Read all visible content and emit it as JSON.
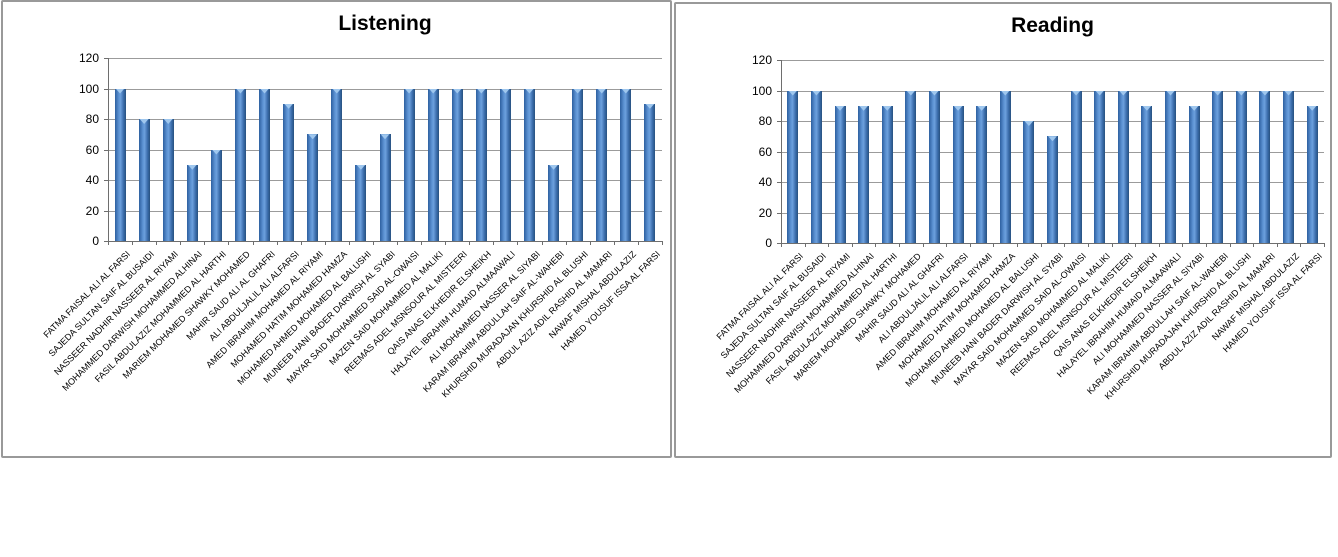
{
  "window": {
    "background": "#ffffff"
  },
  "colors": {
    "bar_dark": "#2d5f9f",
    "bar_mid": "#5c92d3",
    "bar_light": "#6ca0dd",
    "bar_shade": "#3a6cab",
    "bar_edge_dark": "#27517f",
    "bar_cap": "#9fc7ee",
    "gridline": "#9b9b9b",
    "axis": "#6e6e6e",
    "panel_border": "#999999",
    "text": "#000000"
  },
  "chart_data": [
    {
      "type": "bar",
      "title": "Listening",
      "ylim": [
        0,
        120
      ],
      "yticks": [
        0,
        20,
        40,
        60,
        80,
        100,
        120
      ],
      "grid": true,
      "legend": false,
      "categories": [
        "FATMA FAISAL ALI AL FARSI",
        "SAJEDA SULTAN SAIF AL BUSAIDI",
        "NASSEER NADHIR NASSEER AL RIYAMI",
        "MOHAMMED DARWISH MOHAMMED ALHINAI",
        "FASIL ABDULAZIZ MOHAMMED AL HARTHI",
        "MARIEM MOHAMED SHAWKY MOHAMED",
        "MAHIR SAUD ALI AL GHAFRI",
        "ALI ABDULJALIL ALI ALFARSI",
        "AMED IBRAHIM MOHAMED AL RIYAMI",
        "MOHAMED HATIM MOHAMED HAMZA",
        "MOHAMED AHMED MOHAMED AL BALUSHI",
        "MUNEEB HANI BADER DARWISH AL SYABI",
        "MAYAR SAID MOHAMMED SAID AL-OWAISI",
        "MAZEN SAID MOHAMMED AL MALIKI",
        "REEMAS ADEL MSNSOUR AL MISTEERI",
        "QAIS ANAS ELKHEDIR ELSHEIKH",
        "HALAYEL IBRAHIM HUMAID ALMAAWALI",
        "ALI MOHAMMED NASSER AL SIYABI",
        "KARAM IBRAHIM ABDULLAH SAIF AL-WAHEBI",
        "KHURSHID MURADAJAN KHURSHID AL BLUSHI",
        "ABDUL AZIZ ADIL RASHID AL MAMARI",
        "NAWAF MISHAL ABDULAZIZ",
        "HAMED YOUSUF ISSA AL FARSI"
      ],
      "values": [
        100,
        80,
        80,
        50,
        60,
        100,
        100,
        90,
        70,
        100,
        50,
        70,
        100,
        100,
        100,
        100,
        100,
        100,
        50,
        100,
        100,
        100,
        90
      ]
    },
    {
      "type": "bar",
      "title": "Reading",
      "ylim": [
        0,
        120
      ],
      "yticks": [
        0,
        20,
        40,
        60,
        80,
        100,
        120
      ],
      "grid": true,
      "legend": false,
      "categories": [
        "FATMA FAISAL ALI AL FARSI",
        "SAJEDA SULTAN SAIF AL BUSAIDI",
        "NASSEER NADHIR NASSEER AL RIYAMI",
        "MOHAMMED DARWISH MOHAMMED ALHINAI",
        "FASIL ABDULAZIZ MOHAMMED AL HARTHI",
        "MARIEM MOHAMED SHAWKY MOHAMED",
        "MAHIR SAUD ALI AL GHAFRI",
        "ALI ABDULJALIL ALI ALFARSI",
        "AMED IBRAHIM MOHAMED AL RIYAMI",
        "MOHAMED HATIM MOHAMED HAMZA",
        "MOHAMED AHMED MOHAMED AL BALUSHI",
        "MUNEEB HANI BADER DARWISH AL SYABI",
        "MAYAR SAID MOHAMMED SAID AL-OWAISI",
        "MAZEN SAID MOHAMMED AL MALIKI",
        "REEMAS ADEL MSNSOUR AL MISTEERI",
        "QAIS ANAS ELKHEDIR ELSHEIKH",
        "HALAYEL IBRAHIM HUMAID ALMAAWALI",
        "ALI MOHAMMED NASSER AL SIYABI",
        "KARAM IBRAHIM ABDULLAH SAIF AL-WAHEBI",
        "KHURSHID MURADAJAN KHURSHID AL BLUSHI",
        "ABDUL AZIZ ADIL RASHID AL MAMARI",
        "NAWAF MISHAL ABDULAZIZ",
        "HAMED YOUSUF ISSA AL FARSI"
      ],
      "values": [
        100,
        100,
        90,
        90,
        90,
        100,
        100,
        90,
        90,
        100,
        80,
        70,
        100,
        100,
        100,
        90,
        100,
        90,
        100,
        100,
        100,
        100,
        90
      ]
    }
  ]
}
